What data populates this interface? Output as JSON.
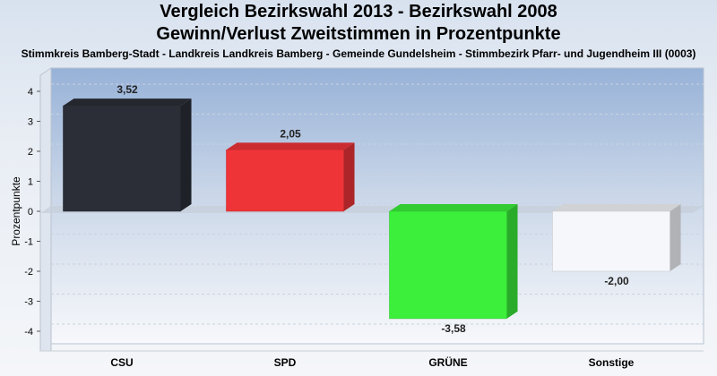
{
  "chart_data": {
    "type": "bar",
    "title": "Vergleich Bezirkswahl 2013 - Bezirkswahl 2008",
    "subtitle": "Gewinn/Verlust Zweitstimmen in Prozentpunkte",
    "caption": "Stimmkreis Bamberg-Stadt - Landkreis Landkreis Bamberg - Gemeinde Gundelsheim - Stimmbezirk Pfarr- und Jugendheim III (0003)",
    "ylabel": "Prozentpunkte",
    "xlabel": "",
    "ylim": [
      -4.5,
      4.5
    ],
    "yticks": [
      -4,
      -3,
      -2,
      -1,
      0,
      1,
      2,
      3,
      4
    ],
    "categories": [
      "CSU",
      "SPD",
      "GRÜNE",
      "Sonstige"
    ],
    "values": [
      3.52,
      2.05,
      -3.58,
      -2.0
    ],
    "value_labels": [
      "3,52",
      "2,05",
      "-3,58",
      "-2,00"
    ],
    "colors": [
      "#2b2e37",
      "#ef3438",
      "#3bef3b",
      "#f6f7fb"
    ],
    "grid": true,
    "legend": "none"
  }
}
